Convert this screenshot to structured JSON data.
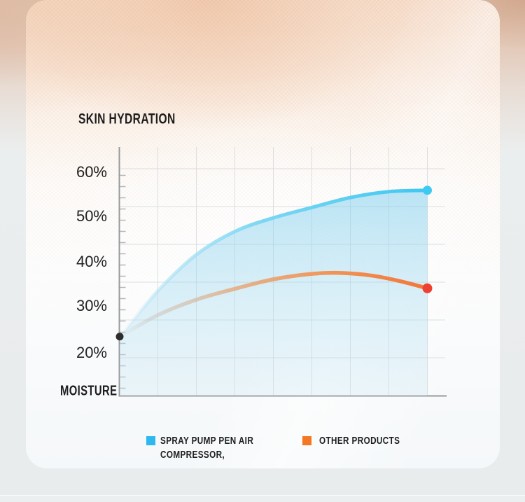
{
  "header": {
    "title": "SKIN HYDRATION"
  },
  "chart": {
    "y_tick_labels": [
      "60%",
      "50%",
      "40%",
      "30%",
      "20%"
    ],
    "x_axis_label": "MOISTURE"
  },
  "legend": {
    "items": [
      {
        "lines": [
          "SPRAY PUMP PEN AIR",
          "COMPRESSOR,"
        ],
        "color": "#2eb8f0"
      },
      {
        "lines": [
          "OTHER PRODUCTS"
        ],
        "color": "#f47723"
      }
    ]
  },
  "chart_data": {
    "type": "line",
    "title": "SKIN HYDRATION",
    "xlabel": "MOISTURE",
    "ylabel": "",
    "y_axis": {
      "unit": "%",
      "tick_values": [
        60,
        50,
        40,
        30,
        20
      ],
      "range": [
        20,
        60
      ]
    },
    "x_axis": {
      "label": "MOISTURE",
      "tick_labels": [],
      "range": [
        0,
        100
      ]
    },
    "grid": true,
    "legend_position": "bottom",
    "axis_color": "#97999b",
    "grid_color": "#d2d5d7",
    "tick_color": "#b3b6b8",
    "area_fill_top": "rgba(125,206,238,0.52)",
    "area_fill_bottom": "rgba(204,231,243,0.30)",
    "start_point": {
      "value": 23.6,
      "color": "#2d2d2d"
    },
    "series": [
      {
        "name": "SPRAY PUMP PEN AIR COMPRESSOR,",
        "color": "#3ec7f1",
        "dot_color": "#3ec9f2",
        "has_area": true,
        "points": [
          {
            "x": 0,
            "y": 23.6
          },
          {
            "x": 12.5,
            "y": 33.8
          },
          {
            "x": 25,
            "y": 41.8
          },
          {
            "x": 37.5,
            "y": 46.9
          },
          {
            "x": 50,
            "y": 49.9
          },
          {
            "x": 62.5,
            "y": 52.2
          },
          {
            "x": 75,
            "y": 54.4
          },
          {
            "x": 87.5,
            "y": 55.7
          },
          {
            "x": 100,
            "y": 56.0
          }
        ]
      },
      {
        "name": "OTHER PRODUCTS",
        "color": "#f3763a",
        "dot_color": "#ee4030",
        "has_area": false,
        "points": [
          {
            "x": 0,
            "y": 23.6
          },
          {
            "x": 12.5,
            "y": 28.4
          },
          {
            "x": 25,
            "y": 31.8
          },
          {
            "x": 37.5,
            "y": 34.2
          },
          {
            "x": 50,
            "y": 36.3
          },
          {
            "x": 62.5,
            "y": 37.5
          },
          {
            "x": 72,
            "y": 37.7
          },
          {
            "x": 82,
            "y": 37.1
          },
          {
            "x": 91,
            "y": 35.9
          },
          {
            "x": 100,
            "y": 34.3
          }
        ]
      }
    ]
  }
}
